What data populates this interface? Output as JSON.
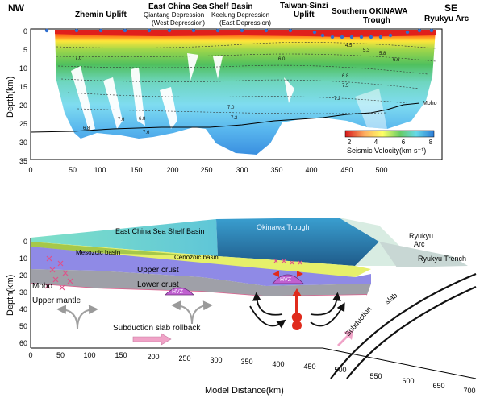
{
  "top_panel": {
    "region_labels": {
      "nw": "NW",
      "se": "SE",
      "zhemin": "Zhemin Uplift",
      "ecs_basin": "East China Sea Shelf Basin",
      "qiantang": "Qiantang Depression",
      "west_dep": "(West Depression)",
      "keelung": "Keelung Depression",
      "east_dep": "(East Depression)",
      "taiwan_sinzi_1": "Taiwan-Sinzi",
      "taiwan_sinzi_2": "Uplift",
      "southern_okinawa_1": "Southern OKINAWA",
      "southern_okinawa_2": "Trough",
      "ryukyu_arc": "Ryukyu Arc"
    },
    "y_axis": {
      "label": "Depth(km)",
      "ticks": [
        "0",
        "5",
        "10",
        "15",
        "20",
        "25",
        "30",
        "35"
      ]
    },
    "x_axis": {
      "ticks": [
        "0",
        "50",
        "100",
        "150",
        "200",
        "250",
        "300",
        "350",
        "400",
        "450",
        "500"
      ]
    },
    "contour_labels": [
      "7.0",
      "6.8",
      "7.6",
      "6.8",
      "7.6",
      "7.0",
      "7.2",
      "6.0",
      "4.5",
      "5.3",
      "5.8",
      "6.6",
      "6.8",
      "7.5",
      "7.2"
    ],
    "moho_label": "Moho",
    "colorbar": {
      "label": "Seismic Velocity(km·s⁻¹)",
      "ticks": [
        "2",
        "4",
        "6",
        "8"
      ],
      "colors": [
        "#d7191c",
        "#fdae61",
        "#ffff66",
        "#66cc66",
        "#66d9e8",
        "#2c7bd6"
      ]
    }
  },
  "bottom_panel": {
    "labels": {
      "ecs_basin": "East China Sea Shelf Basin",
      "okinawa_trough": "Okinawa Trough",
      "ryukyu_1": "Ryukyu",
      "ryukyu_2": "Arc",
      "ryukyu_trench": "Ryukyu Trench",
      "mesozoic": "Mesozoic basin",
      "cenozoic": "Cenozoic basin",
      "upper_crust": "Upper crust",
      "lower_crust": "Lower crust",
      "moho": "Moho",
      "upper_mantle": "Upper mantle",
      "hvz_1": "HVZ",
      "hvz_2": "HVZ",
      "rollback": "Subduction slab rollback",
      "subduction_slab_1": "Subduction",
      "subduction_slab_2": "slab"
    },
    "y_axis": {
      "label": "Depth(km)",
      "ticks": [
        "0",
        "10",
        "20",
        "30",
        "40",
        "50",
        "60"
      ]
    },
    "x_axis": {
      "label": "Model Distance(km)",
      "ticks": [
        "0",
        "50",
        "100",
        "150",
        "200",
        "250",
        "300",
        "350",
        "400",
        "450",
        "500",
        "550",
        "600",
        "650",
        "700"
      ]
    }
  }
}
